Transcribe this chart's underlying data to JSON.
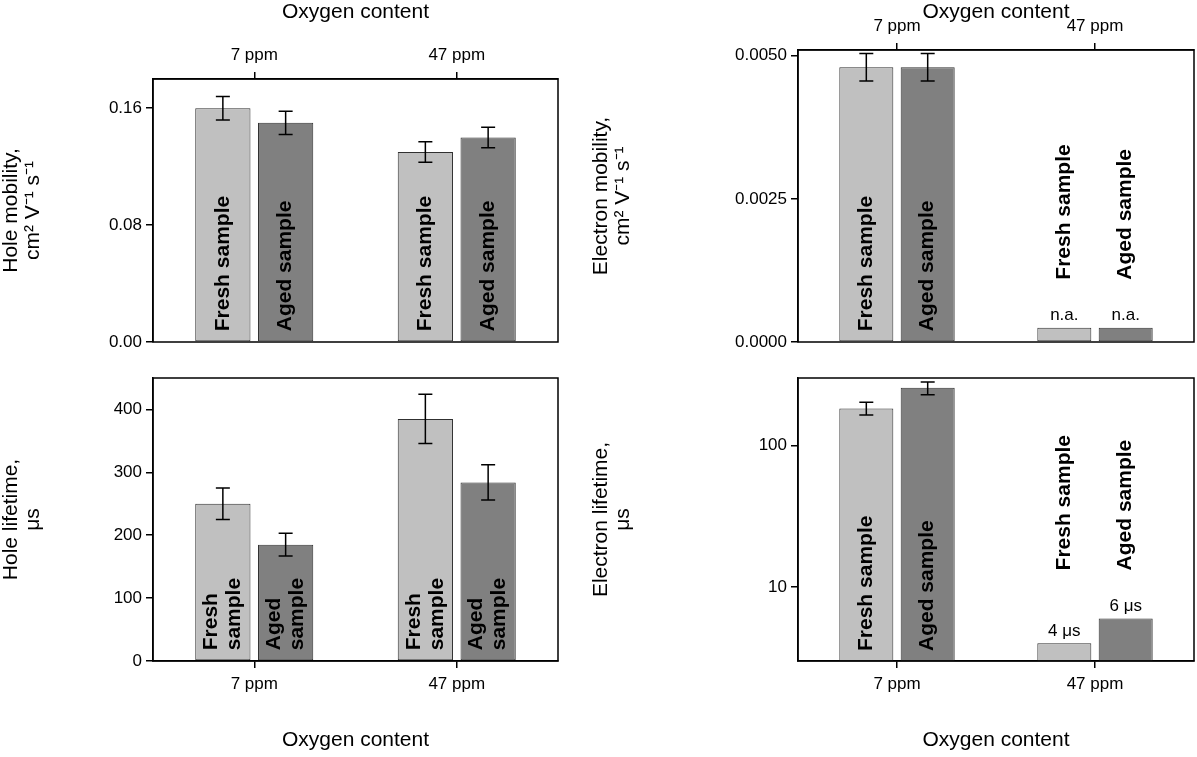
{
  "chart_data": [
    {
      "type": "bar",
      "x2label": "Oxygen content",
      "ylabel": "Hole mobility,\ncm² V⁻¹ s⁻¹",
      "categories": [
        "7 ppm",
        "47 ppm"
      ],
      "ylim": [
        0,
        0.18
      ],
      "yticks": [
        {
          "value": 0,
          "label": "0.00"
        },
        {
          "value": 0.08,
          "label": "0.08"
        },
        {
          "value": 0.16,
          "label": "0.16"
        }
      ],
      "series": [
        {
          "name": "Fresh sample",
          "color": "#c0c0c0",
          "values": [
            0.16,
            0.13
          ],
          "errors": [
            0.008,
            0.007
          ]
        },
        {
          "name": "Aged sample",
          "color": "#808080",
          "values": [
            0.15,
            0.14
          ],
          "errors": [
            0.008,
            0.007
          ]
        }
      ]
    },
    {
      "type": "bar",
      "x2label": "Oxygen content",
      "ylabel": "Electron mobility,\ncm² V⁻¹ s⁻¹",
      "categories": [
        "7 ppm",
        "47 ppm"
      ],
      "ylim": [
        0,
        0.0051
      ],
      "yticks": [
        {
          "value": 0,
          "label": "0.0000"
        },
        {
          "value": 0.0025,
          "label": "0.0025"
        },
        {
          "value": 0.005,
          "label": "0.0050"
        }
      ],
      "series": [
        {
          "name": "Fresh sample",
          "color": "#c0c0c0",
          "values": [
            0.0048,
            0.00025
          ],
          "errors": [
            0.00024,
            null
          ],
          "value_labels": [
            null,
            "n.a."
          ]
        },
        {
          "name": "Aged sample",
          "color": "#808080",
          "values": [
            0.0048,
            0.00025
          ],
          "errors": [
            0.00024,
            null
          ],
          "value_labels": [
            null,
            "n.a."
          ]
        }
      ]
    },
    {
      "type": "bar",
      "xlabel": "Oxygen content",
      "ylabel": "Hole lifetime,\nμs",
      "categories": [
        "7 ppm",
        "47 ppm"
      ],
      "ylim": [
        0,
        450
      ],
      "yticks": [
        0,
        100,
        200,
        300,
        400
      ],
      "series": [
        {
          "name": "Fresh sample",
          "color": "#c0c0c0",
          "values": [
            250,
            385
          ],
          "errors": [
            25,
            39
          ]
        },
        {
          "name": "Aged sample",
          "color": "#808080",
          "values": [
            185,
            284
          ],
          "errors": [
            18,
            28
          ]
        }
      ]
    },
    {
      "type": "bar",
      "xlabel": "Oxygen content",
      "ylabel": "Electron lifetime,\nμs",
      "categories": [
        "7 ppm",
        "47 ppm"
      ],
      "log": true,
      "ylim": [
        3,
        300
      ],
      "yticks": [
        10,
        100
      ],
      "series": [
        {
          "name": "Fresh sample",
          "color": "#c0c0c0",
          "values": [
            183,
            4
          ],
          "errors": [
            [
              164,
              202
            ],
            null
          ],
          "value_labels": [
            null,
            "4 μs"
          ]
        },
        {
          "name": "Aged sample",
          "color": "#808080",
          "values": [
            256,
            6
          ],
          "errors": [
            [
              228,
              281
            ],
            null
          ],
          "value_labels": [
            null,
            "6 μs"
          ]
        }
      ]
    }
  ]
}
